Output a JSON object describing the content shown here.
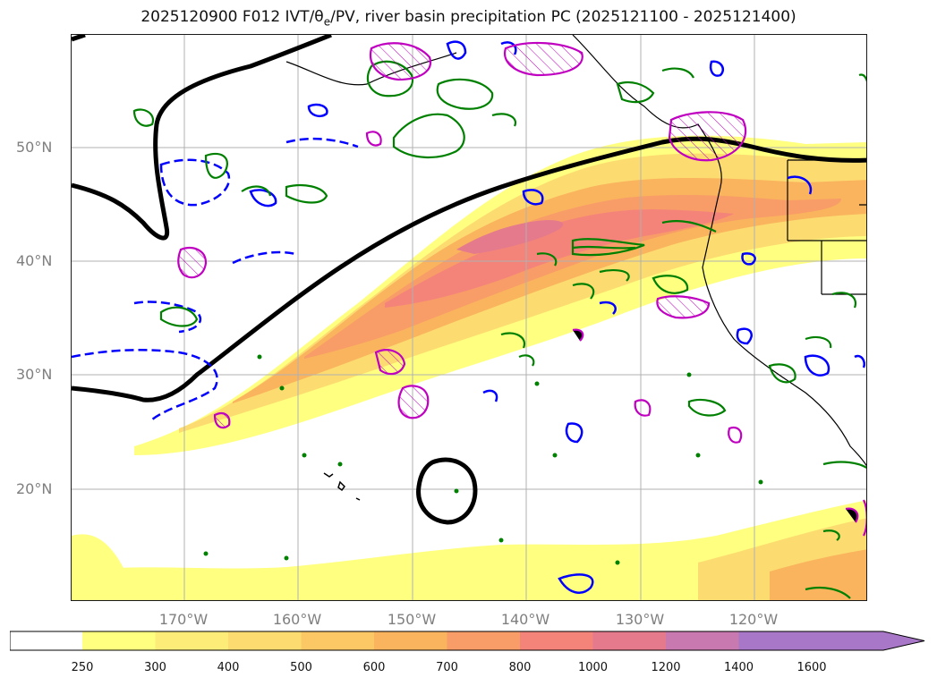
{
  "figure": {
    "title_prefix": "2025120900 F012 IVT/θ",
    "title_sub": "e",
    "title_suffix": "/PV, river basin precipitation PC (2025121100 - 2025121400)"
  },
  "axes": {
    "lat_labels": [
      "50°N",
      "40°N",
      "30°N",
      "20°N"
    ],
    "lon_labels": [
      "170°W",
      "160°W",
      "150°W",
      "140°W",
      "130°W",
      "120°W"
    ]
  },
  "colorbar": {
    "ticks": [
      "250",
      "300",
      "400",
      "500",
      "600",
      "700",
      "800",
      "1000",
      "1200",
      "1400",
      "1600"
    ],
    "colors": [
      "#ffff80",
      "#fdec78",
      "#fcdc70",
      "#fbc865",
      "#fab45e",
      "#f89c68",
      "#f4847a",
      "#e47a8c",
      "#c87ab0",
      "#a877c8"
    ],
    "extend": "max"
  },
  "map_legend_colors": {
    "ivt_fill_low": "#ffff80",
    "ivt_fill_high": "#e47a8c",
    "theta_e_contour": "#000000",
    "pv_positive": "#0000ff",
    "pv_negative": "#0000ff",
    "precip_contour": "#008000",
    "hatched_region": "#c000c0"
  }
}
